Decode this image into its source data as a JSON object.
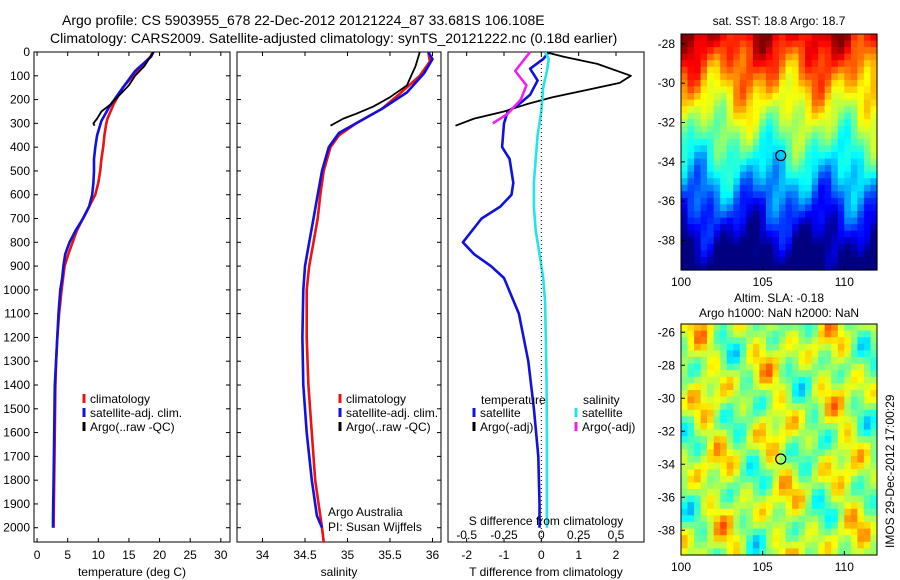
{
  "header": {
    "line1": "Argo profile: CS 5903955_678 22-Dec-2012 20121224_87 33.681S 106.108E",
    "line2": "Climatology: CARS2009. Satellite-adjusted climatology: synTS_20121222.nc (0.18d earlier)"
  },
  "colors": {
    "climatology": "#ee1111",
    "satellite_adj": "#1111dd",
    "argo": "#000000",
    "salinity_sat": "#22e6e6",
    "salinity_argo": "#ee22ee"
  },
  "chart_data": [
    {
      "id": "temperature",
      "type": "line",
      "xlabel": "temperature (deg C)",
      "xlim": [
        -0.5,
        31.5
      ],
      "xticks": [
        0,
        5,
        10,
        15,
        20,
        25,
        30
      ],
      "ylim": [
        2060,
        0
      ],
      "yticks": [
        0,
        100,
        200,
        300,
        400,
        500,
        600,
        700,
        800,
        900,
        1000,
        1100,
        1200,
        1300,
        1400,
        1500,
        1600,
        1700,
        1800,
        1900,
        2000
      ],
      "legend": [
        "climatology",
        "satellite-adj. clim.",
        "Argo(..raw -QC)"
      ],
      "series": [
        {
          "name": "climatology",
          "color": "#ee1111",
          "x": [
            18.9,
            18.5,
            17,
            14,
            12.5,
            11.5,
            11.3,
            11,
            10.8,
            10.5,
            10.3,
            10,
            9.5,
            8.5,
            7.5,
            6.5,
            5.8,
            5.1,
            4.5,
            4,
            3.6,
            3.3,
            3.1,
            3,
            2.9,
            2.8,
            2.7
          ],
          "y": [
            0,
            20,
            60,
            150,
            220,
            280,
            300,
            350,
            400,
            450,
            500,
            550,
            600,
            650,
            700,
            750,
            800,
            850,
            900,
            1000,
            1100,
            1200,
            1300,
            1400,
            1600,
            1800,
            2000
          ]
        },
        {
          "name": "satellite-adj. clim.",
          "color": "#1111dd",
          "x": [
            19,
            18.6,
            16,
            14,
            11.8,
            10.5,
            9.8,
            9.5,
            9.3,
            9.3,
            9.2,
            9,
            8.5,
            7.5,
            6.3,
            5.3,
            4.6,
            4.3,
            4.1,
            3.8,
            3.5,
            3.3,
            3.1,
            2.9,
            2.8,
            2.7,
            2.6,
            2.6
          ],
          "y": [
            0,
            20,
            80,
            150,
            230,
            290,
            350,
            400,
            450,
            500,
            550,
            600,
            650,
            700,
            750,
            800,
            850,
            900,
            950,
            1000,
            1100,
            1200,
            1300,
            1400,
            1600,
            1800,
            1950,
            2000
          ]
        },
        {
          "name": "Argo(..raw -QC)",
          "color": "#000000",
          "x": [
            19,
            17.5,
            16,
            15,
            13.5,
            12,
            10.5,
            9.8,
            9.2,
            9.4
          ],
          "y": [
            0,
            60,
            100,
            140,
            180,
            220,
            250,
            280,
            300,
            310
          ]
        }
      ]
    },
    {
      "id": "salinity",
      "type": "line",
      "xlabel": "salinity",
      "xlim": [
        33.7,
        36.1
      ],
      "xticks": [
        34,
        34.5,
        35,
        35.5,
        36
      ],
      "ylim": [
        2060,
        0
      ],
      "yticks": [
        0,
        100,
        200,
        300,
        400,
        500,
        600,
        700,
        800,
        900,
        1000,
        1100,
        1200,
        1300,
        1400,
        1500,
        1600,
        1700,
        1800,
        1900,
        2000
      ],
      "legend": [
        "climatology",
        "satellite-adj. clim.",
        "Argo(..raw -QC)"
      ],
      "annotations": [
        "Argo Australia",
        "PI: Susan Wijffels"
      ],
      "series": [
        {
          "name": "climatology",
          "color": "#ee1111",
          "x": [
            35.95,
            35.97,
            35.85,
            35.6,
            35.4,
            35.1,
            34.9,
            34.8,
            34.72,
            34.68,
            34.65,
            34.6,
            34.55,
            34.52,
            34.52,
            34.54,
            34.58,
            34.62,
            34.66,
            34.7,
            34.72
          ],
          "y": [
            0,
            40,
            100,
            180,
            240,
            300,
            350,
            400,
            500,
            600,
            700,
            800,
            900,
            1000,
            1200,
            1400,
            1600,
            1800,
            1900,
            2000,
            2060
          ]
        },
        {
          "name": "satellite-adj. clim.",
          "color": "#1111dd",
          "x": [
            35.95,
            36,
            35.9,
            35.7,
            35.4,
            35.1,
            34.9,
            34.78,
            34.7,
            34.65,
            34.6,
            34.55,
            34.5,
            34.48,
            34.47,
            34.48,
            34.52,
            34.58,
            34.64,
            34.7
          ],
          "y": [
            0,
            30,
            90,
            170,
            240,
            300,
            340,
            400,
            500,
            600,
            700,
            800,
            900,
            1000,
            1200,
            1400,
            1600,
            1800,
            1950,
            2000
          ]
        },
        {
          "name": "Argo(..raw -QC)",
          "color": "#000000",
          "x": [
            35.85,
            35.8,
            35.75,
            35.7,
            35.5,
            35.3,
            35.1,
            34.95,
            34.85,
            34.8
          ],
          "y": [
            0,
            60,
            100,
            140,
            190,
            230,
            260,
            280,
            300,
            310
          ]
        }
      ]
    },
    {
      "id": "differences",
      "type": "line",
      "xlabel": "T difference from climatology",
      "x2label": "S difference from climatology",
      "xlim": [
        -2.5,
        2.75
      ],
      "xticks": [
        -2,
        -1,
        0,
        1,
        2
      ],
      "x2ticks": [
        -0.5,
        -0.25,
        0,
        0.25,
        0.5
      ],
      "x2ticklabels": [
        "-0.5",
        "-0.25",
        "0",
        "0.25",
        "0.5"
      ],
      "ylim": [
        2060,
        0
      ],
      "legend_temperature_title": "temperature",
      "legend_salinity_title": "salinity",
      "legend": [
        "satellite",
        "Argo(-adj)",
        "satellite",
        "Argo(-adj)"
      ],
      "series": [
        {
          "name": "satellite",
          "color": "#1111dd",
          "x": [
            0.2,
            0.05,
            -0.3,
            -0.1,
            -0.3,
            -0.6,
            -0.9,
            -1.0,
            -1.05,
            -0.85,
            -0.75,
            -0.8,
            -1.1,
            -1.6,
            -2.1,
            -1.8,
            -1.35,
            -1.0,
            -0.6,
            -0.35,
            -0.2,
            -0.08,
            -0.05,
            -0.05
          ],
          "y": [
            0,
            30,
            70,
            120,
            180,
            220,
            250,
            300,
            400,
            450,
            550,
            600,
            650,
            700,
            800,
            850,
            900,
            950,
            1100,
            1300,
            1500,
            1700,
            1900,
            2000
          ]
        },
        {
          "name": "Argo(-adj)",
          "color": "#000000",
          "x": [
            0.1,
            0.6,
            1.5,
            2.4,
            2.1,
            1.2,
            0.3,
            -0.4,
            -1.0,
            -1.8,
            -2.3
          ],
          "y": [
            0,
            20,
            50,
            100,
            130,
            160,
            190,
            220,
            250,
            280,
            310
          ]
        },
        {
          "name": "satellite",
          "color": "#22e6e6",
          "x": [
            0.1,
            0.2,
            0.15,
            0.05,
            0,
            -0.1,
            -0.15,
            -0.2,
            -0.2,
            -0.15,
            -0.05,
            0.05,
            0.1,
            0.12,
            0.14,
            0.15,
            0.15,
            0.15
          ],
          "y": [
            0,
            30,
            80,
            150,
            250,
            350,
            450,
            550,
            650,
            750,
            850,
            950,
            1050,
            1200,
            1400,
            1600,
            1800,
            2000
          ]
        },
        {
          "name": "Argo(-adj)",
          "color": "#ee22ee",
          "x": [
            -0.3,
            -0.7,
            -0.4,
            -0.55,
            -0.9,
            -1.3
          ],
          "y": [
            0,
            80,
            140,
            200,
            260,
            300
          ]
        }
      ]
    },
    {
      "id": "sst_map",
      "type": "heatmap",
      "title": "sat. SST: 18.8 Argo: 18.7",
      "xlim": [
        100,
        112
      ],
      "ylim": [
        -39.5,
        -27.5
      ],
      "xticks": [
        100,
        105,
        110
      ],
      "yticks": [
        -28,
        -30,
        -32,
        -34,
        -36,
        -38
      ],
      "marker": {
        "lon": 106.108,
        "lat": -33.681
      }
    },
    {
      "id": "sla_map",
      "type": "heatmap",
      "title": "Altim. SLA: -0.18",
      "subtitle": "Argo h1000: NaN h2000: NaN",
      "xlim": [
        100,
        112
      ],
      "ylim": [
        -39.5,
        -25.5
      ],
      "xticks": [
        100,
        105,
        110
      ],
      "yticks": [
        -26,
        -28,
        -30,
        -32,
        -34,
        -36,
        -38
      ],
      "marker": {
        "lon": 106.108,
        "lat": -33.681
      },
      "side_label": "IMOS 29-Dec-2012 17:00:29"
    }
  ]
}
